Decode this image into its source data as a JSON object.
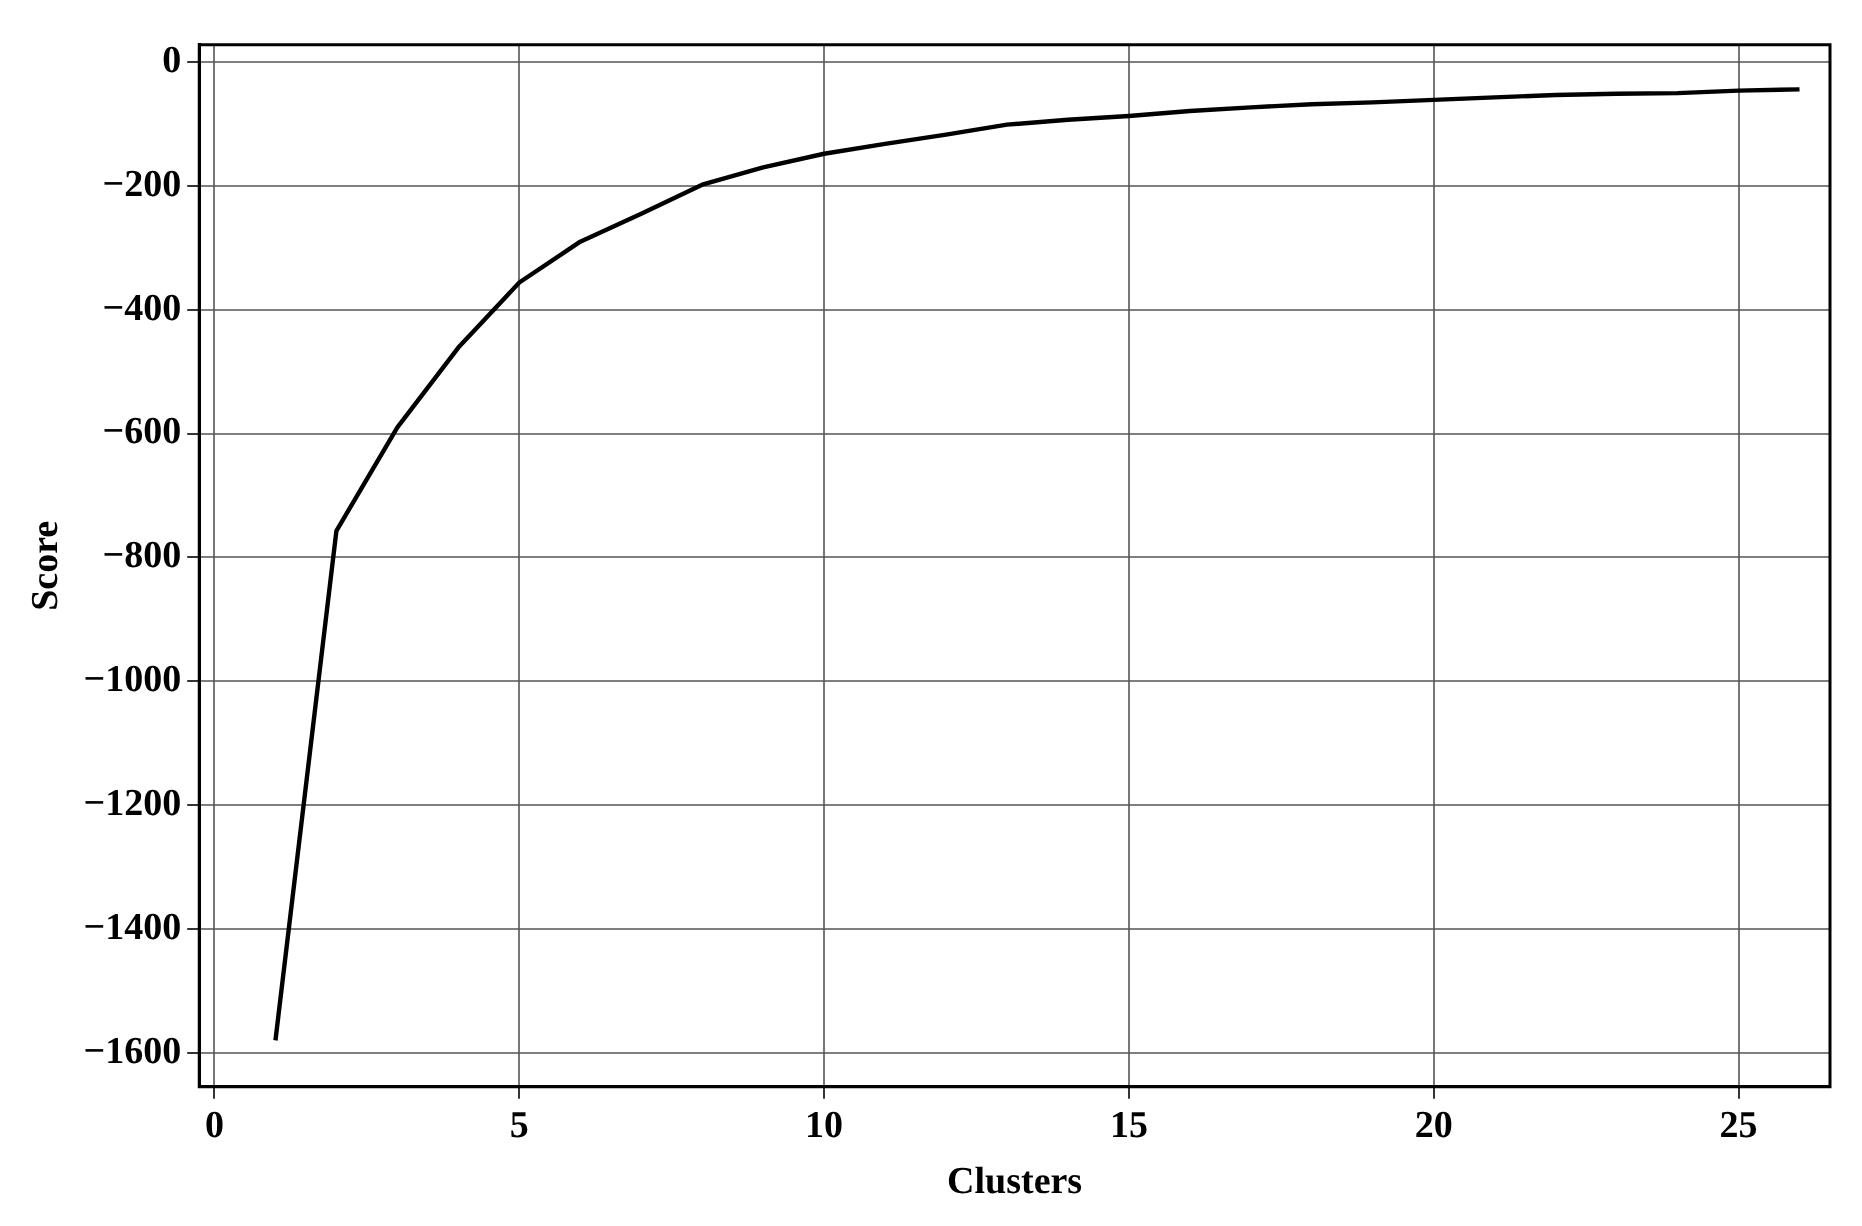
{
  "chart_data": {
    "type": "line",
    "xlabel": "Clusters",
    "ylabel": "Score",
    "x": [
      1,
      2,
      3,
      4,
      5,
      6,
      7,
      8,
      9,
      10,
      11,
      12,
      13,
      14,
      15,
      16,
      17,
      18,
      19,
      20,
      21,
      22,
      23,
      24,
      25,
      26
    ],
    "series": [
      {
        "color": "#000000",
        "values": [
          -1580,
          -757,
          -590,
          -461,
          -356,
          -290,
          -245,
          -198,
          -170,
          -148,
          -132,
          -117,
          -101,
          -93,
          -87,
          -79,
          -73,
          -68,
          -65,
          -61,
          -57,
          -53,
          -51,
          -50,
          -46,
          -44
        ]
      }
    ],
    "xlim": [
      -0.25,
      26.5
    ],
    "xticks": [
      0,
      5,
      10,
      15,
      20,
      25
    ],
    "ylim": [
      -1655,
      28
    ],
    "yticks": [
      -1600,
      -1400,
      -1200,
      -1000,
      -800,
      -600,
      -400,
      -200,
      0
    ],
    "grid": true,
    "legend": false,
    "marker": "none",
    "line_style": "solid"
  }
}
